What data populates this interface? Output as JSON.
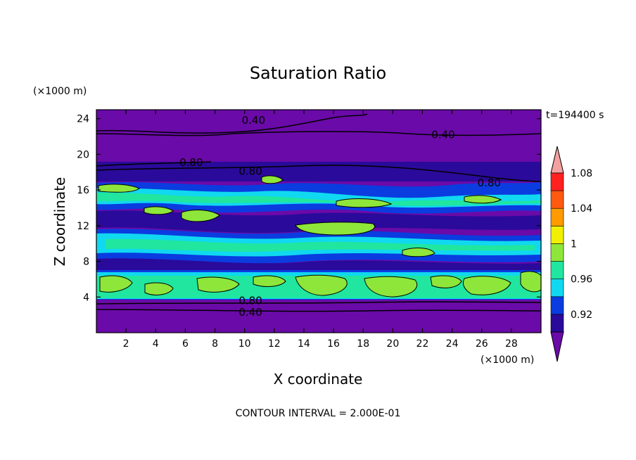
{
  "chart_data": {
    "type": "heatmap",
    "title": "Saturation Ratio",
    "xlabel": "X coordinate",
    "ylabel": "Z coordinate",
    "x_unit_label": "(×1000 m)",
    "y_unit_label": "(×1000 m)",
    "time_label": "t=194400 s",
    "footer": "CONTOUR INTERVAL = 2.000E-01",
    "xlim": [
      0,
      30
    ],
    "ylim": [
      0,
      25
    ],
    "x_ticks": [
      2,
      4,
      6,
      8,
      10,
      12,
      14,
      16,
      18,
      20,
      22,
      24,
      26,
      28
    ],
    "y_ticks": [
      4,
      8,
      12,
      16,
      20,
      24
    ],
    "colorbar": {
      "levels": [
        0.92,
        0.96,
        1,
        1.04,
        1.08
      ],
      "colors": [
        "#6a0aa8",
        "#2a0a9a",
        "#0a3ce0",
        "#10d8f0",
        "#20e6a0",
        "#8ee63a",
        "#f0f000",
        "#ff9a00",
        "#ff5a10",
        "#ff2020",
        "#f4a0a0"
      ]
    },
    "contour_labels": [
      {
        "text": "0.40",
        "x": 10.6,
        "z": 23.8
      },
      {
        "text": "0.40",
        "x": 23.4,
        "z": 22.2
      },
      {
        "text": "0.80",
        "x": 6.4,
        "z": 19.1
      },
      {
        "text": "0.80",
        "x": 10.4,
        "z": 18.1
      },
      {
        "text": "0.80",
        "x": 26.5,
        "z": 16.8
      },
      {
        "text": "0.80",
        "x": 10.4,
        "z": 3.6
      },
      {
        "text": "0.40",
        "x": 10.4,
        "z": 2.3
      }
    ],
    "bands": [
      {
        "z0": 0.0,
        "z1": 3.6,
        "value": 0.5
      },
      {
        "z0": 3.6,
        "z1": 7.0,
        "value": 0.99
      },
      {
        "z0": 7.0,
        "z1": 9.0,
        "value": 0.94
      },
      {
        "z0": 9.0,
        "z1": 12.0,
        "value": 0.97
      },
      {
        "z0": 12.0,
        "z1": 14.5,
        "value": 0.95
      },
      {
        "z0": 14.5,
        "z1": 17.0,
        "value": 0.97
      },
      {
        "z0": 17.0,
        "z1": 18.5,
        "value": 0.9
      },
      {
        "z0": 18.5,
        "z1": 25.0,
        "value": 0.5
      }
    ]
  }
}
